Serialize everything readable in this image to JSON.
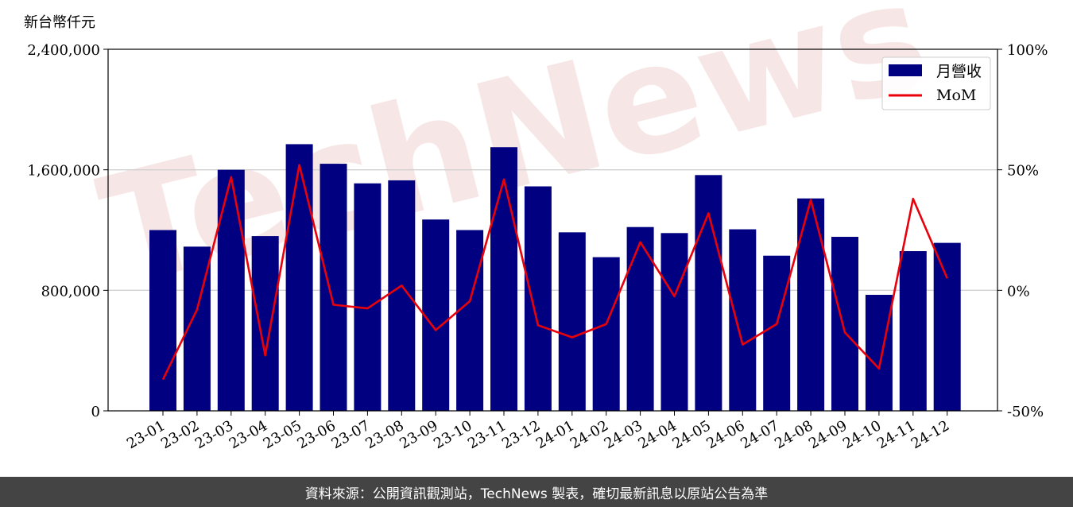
{
  "watermark": "TechNews",
  "footer": {
    "source_text": "資料來源：公開資訊觀測站，TechNews 製表，確切最新訊息以原站公告為準"
  },
  "chart_data": {
    "type": "bar",
    "title": "",
    "y_unit_label": "新台幣仟元",
    "categories": [
      "23-01",
      "23-02",
      "23-03",
      "23-04",
      "23-05",
      "23-06",
      "23-07",
      "23-08",
      "23-09",
      "23-10",
      "23-11",
      "23-12",
      "24-01",
      "24-02",
      "24-03",
      "24-04",
      "24-05",
      "24-06",
      "24-07",
      "24-08",
      "24-09",
      "24-10",
      "24-11",
      "24-12"
    ],
    "series": [
      {
        "name": "月營收",
        "type": "bar",
        "color": "#000080",
        "axis": "left",
        "values": [
          1200000,
          1090000,
          1600000,
          1160000,
          1770000,
          1640000,
          1510000,
          1530000,
          1270000,
          1200000,
          1750000,
          1490000,
          1185000,
          1020000,
          1220000,
          1180000,
          1565000,
          1205000,
          1030000,
          1410000,
          1155000,
          770000,
          1060000,
          1115000
        ]
      },
      {
        "name": "MoM",
        "type": "line",
        "color": "#e8000b",
        "axis": "right",
        "values": [
          -37,
          -8,
          47,
          -27,
          52,
          -6,
          -7.5,
          2,
          -16.5,
          -4.5,
          46,
          -14.5,
          -19.5,
          -14,
          20,
          -2.5,
          32,
          -22.5,
          -14,
          37.5,
          -17.5,
          -32.5,
          38,
          5
        ]
      }
    ],
    "y_left": {
      "min": 0,
      "max": 2400000,
      "ticks": [
        0,
        800000,
        1600000,
        2400000
      ],
      "tick_labels": [
        "0",
        "800,000",
        "1,600,000",
        "2,400,000"
      ]
    },
    "y_right": {
      "min": -50,
      "max": 100,
      "ticks": [
        -50,
        0,
        50,
        100
      ],
      "tick_labels": [
        "-50%",
        "0%",
        "50%",
        "100%"
      ]
    },
    "grid": "horizontal",
    "legend_position": "top-right"
  }
}
